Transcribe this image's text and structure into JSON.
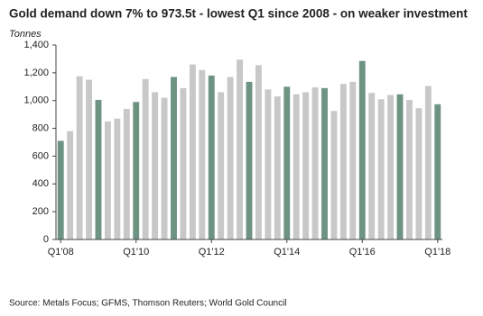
{
  "chart_data": {
    "type": "bar",
    "title": "Gold demand down 7% to 973.5t - lowest Q1 since 2008 - on weaker investment",
    "y_label": "Tonnes",
    "source": "Source: Metals Focus; GFMS, Thomson Reuters; World Gold Council",
    "categories": [
      "Q1'08",
      null,
      null,
      null,
      null,
      null,
      null,
      null,
      "Q1'10",
      null,
      null,
      null,
      null,
      null,
      null,
      null,
      "Q1'12",
      null,
      null,
      null,
      null,
      null,
      null,
      null,
      "Q1'14",
      null,
      null,
      null,
      null,
      null,
      null,
      null,
      "Q1'16",
      null,
      null,
      null,
      null,
      null,
      null,
      null,
      "Q1'18"
    ],
    "values": [
      710,
      780,
      1175,
      1150,
      1005,
      850,
      870,
      940,
      990,
      1155,
      1060,
      1020,
      1170,
      1090,
      1260,
      1220,
      1180,
      1060,
      1170,
      1295,
      1135,
      1255,
      1080,
      1030,
      1100,
      1045,
      1060,
      1095,
      1090,
      925,
      1120,
      1135,
      1285,
      1055,
      1010,
      1040,
      1045,
      1005,
      945,
      1105,
      973.5
    ],
    "colors": [
      "#6e9383",
      "#c8c8c8",
      "#c8c8c8",
      "#c8c8c8",
      "#6e9383",
      "#c8c8c8",
      "#c8c8c8",
      "#c8c8c8",
      "#6e9383",
      "#c8c8c8",
      "#c8c8c8",
      "#c8c8c8",
      "#6e9383",
      "#c8c8c8",
      "#c8c8c8",
      "#c8c8c8",
      "#6e9383",
      "#c8c8c8",
      "#c8c8c8",
      "#c8c8c8",
      "#6e9383",
      "#c8c8c8",
      "#c8c8c8",
      "#c8c8c8",
      "#6e9383",
      "#c8c8c8",
      "#c8c8c8",
      "#c8c8c8",
      "#6e9383",
      "#c8c8c8",
      "#c8c8c8",
      "#c8c8c8",
      "#6e9383",
      "#c8c8c8",
      "#c8c8c8",
      "#c8c8c8",
      "#6e9383",
      "#c8c8c8",
      "#c8c8c8",
      "#c8c8c8",
      "#6e9383"
    ],
    "ylim": [
      0,
      1400
    ],
    "yticks": [
      0,
      200,
      400,
      600,
      800,
      {
        "value": 1000,
        "label": "1,000"
      },
      {
        "value": 1200,
        "label": "1,200"
      },
      {
        "value": 1400,
        "label": "1,400"
      }
    ],
    "grid": false
  }
}
